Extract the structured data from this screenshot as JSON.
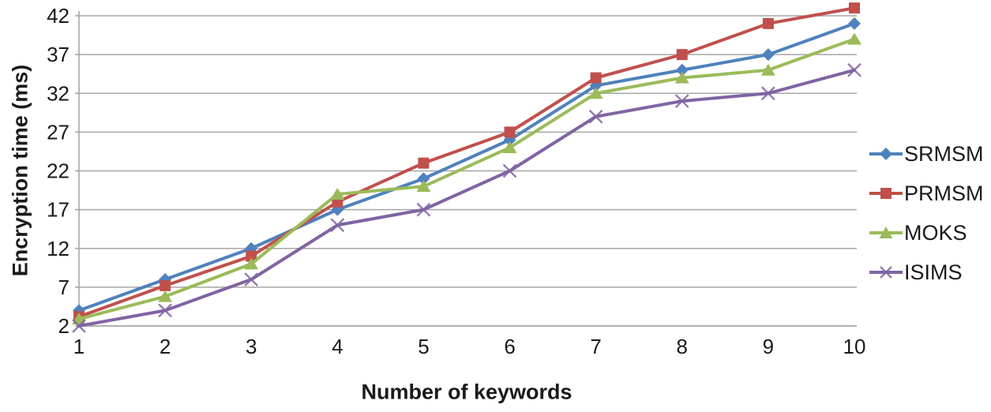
{
  "chart_data": {
    "type": "line",
    "title": "",
    "xlabel": "Number of keywords",
    "ylabel": "Encryption time (ms)",
    "categories": [
      1,
      2,
      3,
      4,
      5,
      6,
      7,
      8,
      9,
      10
    ],
    "y_ticks": [
      2,
      7,
      12,
      17,
      22,
      27,
      32,
      37,
      42
    ],
    "ylim": [
      2,
      43.5
    ],
    "grid": "horizontal",
    "legend_position": "right",
    "colors": {
      "grid": "#A6A6A6",
      "axis": "#A6A6A6",
      "tick_label": "#1a1a1a"
    },
    "series": [
      {
        "name": "SRMSM",
        "color": "#4F81BD",
        "marker": "diamond",
        "values": [
          4,
          8,
          12,
          17,
          21,
          26,
          33,
          35,
          37,
          41
        ]
      },
      {
        "name": "PRMSM",
        "color": "#C0504D",
        "marker": "square",
        "values": [
          3.2,
          7.2,
          11,
          18,
          23,
          27,
          34,
          37,
          41,
          43
        ]
      },
      {
        "name": "MOKS",
        "color": "#9BBB59",
        "marker": "triangle",
        "values": [
          2.9,
          5.8,
          10,
          19,
          20,
          25,
          32,
          34,
          35,
          39
        ]
      },
      {
        "name": "ISIMS",
        "color": "#8064A2",
        "marker": "x",
        "values": [
          2,
          4,
          8,
          15,
          17,
          22,
          29,
          31,
          32,
          35
        ]
      }
    ]
  }
}
